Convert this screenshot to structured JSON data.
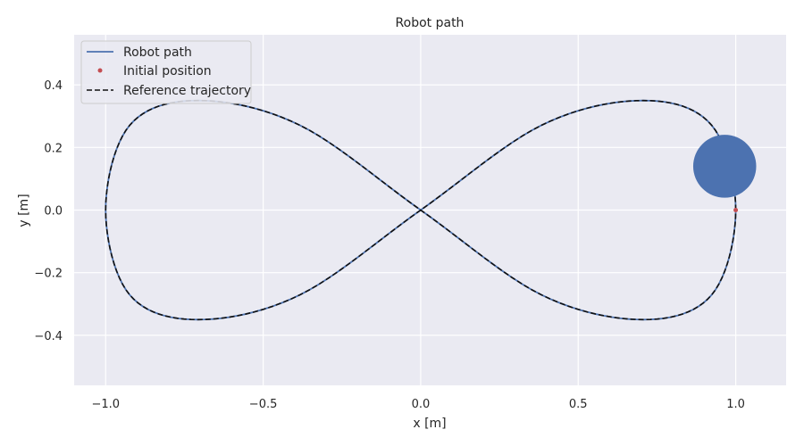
{
  "chart_data": {
    "type": "line",
    "title": "Robot path",
    "xlabel": "x [m]",
    "ylabel": "y [m]",
    "xlim": [
      -1.1,
      1.16
    ],
    "ylim": [
      -0.56,
      0.56
    ],
    "xticks": [
      -1.0,
      -0.5,
      0.0,
      0.5,
      1.0
    ],
    "xtick_labels": [
      "−1.0",
      "−0.5",
      "0.0",
      "0.5",
      "1.0"
    ],
    "yticks": [
      -0.4,
      -0.2,
      0.0,
      0.2,
      0.4
    ],
    "ytick_labels": [
      "−0.4",
      "−0.2",
      "0.0",
      "0.2",
      "0.4"
    ],
    "grid": true,
    "legend_position": "top-left",
    "background_color": "#eaeaf2",
    "series": [
      {
        "name": "Robot path",
        "style": "solid",
        "color": "#4c72b0",
        "x": [
          1.0,
          0.9239,
          0.7071,
          0.3827,
          0.0,
          -0.3827,
          -0.7071,
          -0.9239,
          -1.0,
          -0.9239,
          -0.7071,
          -0.3827,
          0.0,
          0.3827,
          0.7071,
          0.9239,
          1.0
        ],
        "y": [
          0.0,
          0.2706,
          0.35,
          0.2706,
          0.0,
          -0.2706,
          -0.35,
          -0.2706,
          0.0,
          0.2706,
          0.35,
          0.2706,
          0.0,
          -0.2706,
          -0.35,
          -0.2706,
          0.0
        ]
      },
      {
        "name": "Initial position",
        "style": "marker",
        "color": "#c44e52",
        "x": [
          1.0
        ],
        "y": [
          0.0
        ]
      },
      {
        "name": "Reference trajectory",
        "style": "dashed",
        "color": "#111111",
        "x": [
          1.0,
          0.9239,
          0.7071,
          0.3827,
          0.0,
          -0.3827,
          -0.7071,
          -0.9239,
          -1.0,
          -0.9239,
          -0.7071,
          -0.3827,
          0.0,
          0.3827,
          0.7071,
          0.9239,
          1.0
        ],
        "y": [
          0.0,
          0.2706,
          0.35,
          0.2706,
          0.0,
          -0.2706,
          -0.35,
          -0.2706,
          0.0,
          0.2706,
          0.35,
          0.2706,
          0.0,
          -0.2706,
          -0.35,
          -0.2706,
          0.0
        ]
      }
    ],
    "annotations": [
      {
        "type": "robot-disc",
        "x": 0.965,
        "y": 0.14,
        "radius_data_x": 0.1,
        "color": "#4c72b0"
      }
    ]
  }
}
